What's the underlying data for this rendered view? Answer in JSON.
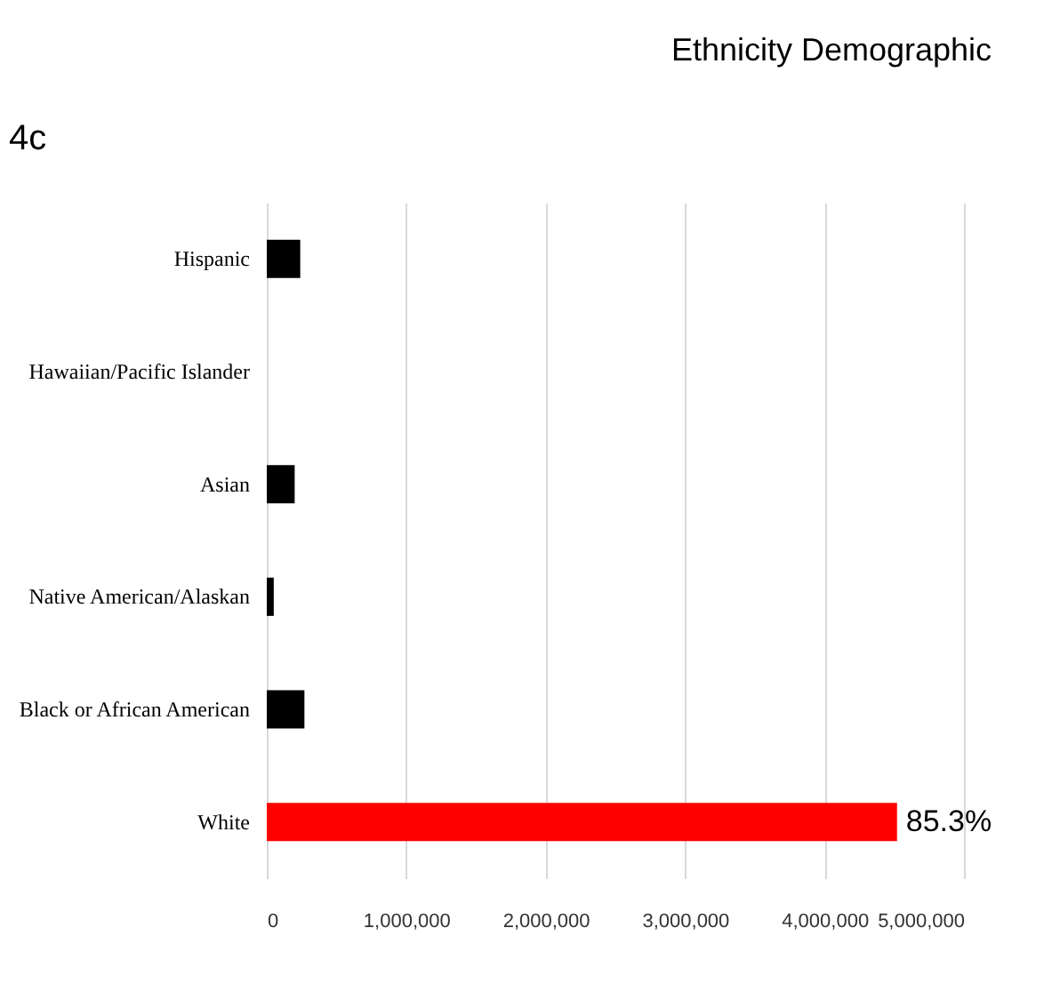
{
  "chart_data": {
    "type": "bar",
    "orientation": "horizontal",
    "title": "Ethnicity Demographic",
    "annotations": [
      "4c",
      {
        "text": "85.3%",
        "x": 4520000,
        "y": "White"
      }
    ],
    "categories": [
      "Hispanic",
      "Hawaiian/Pacific Islander",
      "Asian",
      "Native American/Alaskan",
      "Black or African American",
      "White"
    ],
    "values": [
      240000,
      0,
      200000,
      50000,
      270000,
      4520000
    ],
    "colors": [
      "#000000",
      "#000000",
      "#000000",
      "#000000",
      "#000000",
      "#ff0000"
    ],
    "xlim": [
      0,
      5000000
    ],
    "xticks": [
      0,
      {
        "value": 1000000,
        "label": "1,000,000"
      },
      {
        "value": 2000000,
        "label": "2,000,000"
      },
      {
        "value": 3000000,
        "label": "3,000,000"
      },
      {
        "value": 4000000,
        "label": "4,000,000"
      },
      {
        "value": 5000000,
        "label": "5,000,000"
      }
    ],
    "grid": "x"
  }
}
